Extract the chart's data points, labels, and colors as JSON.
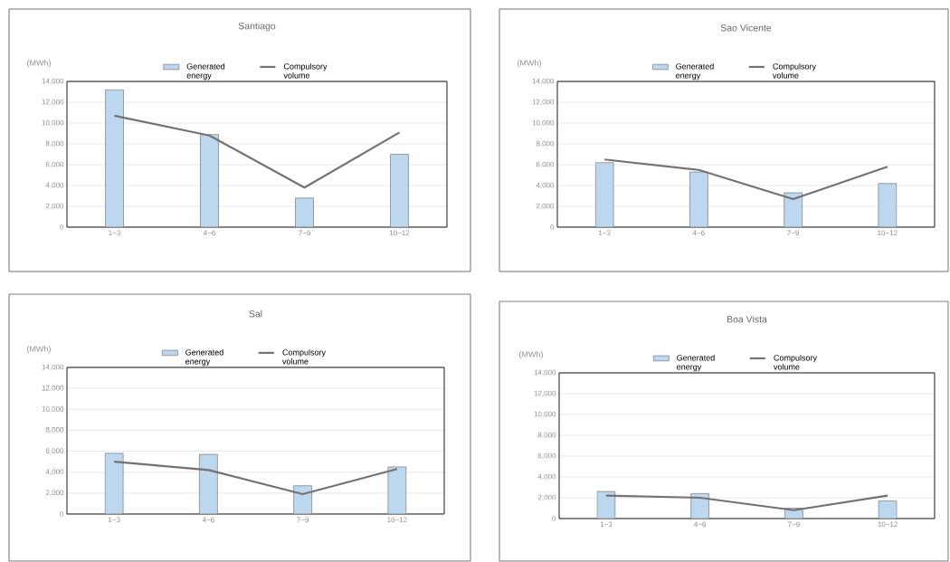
{
  "chart_data": [
    {
      "type": "bar",
      "title": "Santiago",
      "ylabel": "(MWh)",
      "categories": [
        "1~3",
        "4~6",
        "7~9",
        "10~12"
      ],
      "series": [
        {
          "name": "Generated energy",
          "type": "bar",
          "color": "#bdd7ee",
          "values": [
            13200,
            8900,
            2800,
            7000
          ]
        },
        {
          "name": "Compulsory volume",
          "type": "line",
          "color": "#767171",
          "values": [
            10700,
            8800,
            3800,
            9100
          ]
        }
      ],
      "ylim": [
        0,
        14000
      ],
      "yticks": [
        {
          "value": 0,
          "label": "0"
        },
        {
          "value": 2000,
          "label": "2,000"
        },
        {
          "value": 4000,
          "label": "4,000"
        },
        {
          "value": 6000,
          "label": "6,000"
        },
        {
          "value": 8000,
          "label": "8,000"
        },
        {
          "value": 10000,
          "label": "10,000"
        },
        {
          "value": 12000,
          "label": "12,000"
        },
        {
          "value": 14000,
          "label": "14,000"
        }
      ],
      "grid": "y",
      "legend": "top"
    },
    {
      "type": "bar",
      "title": "Sao Vicente",
      "ylabel": "(MWh)",
      "categories": [
        "1~3",
        "4~6",
        "7~9",
        "10~12"
      ],
      "series": [
        {
          "name": "Generated energy",
          "type": "bar",
          "color": "#bdd7ee",
          "values": [
            6200,
            5300,
            3300,
            4200
          ]
        },
        {
          "name": "Compulsory volume",
          "type": "line",
          "color": "#767171",
          "values": [
            6500,
            5500,
            2700,
            5800
          ]
        }
      ],
      "ylim": [
        0,
        14000
      ],
      "yticks": [
        {
          "value": 0,
          "label": "0"
        },
        {
          "value": 2000,
          "label": "2,000"
        },
        {
          "value": 4000,
          "label": "4,000"
        },
        {
          "value": 6000,
          "label": "6,000"
        },
        {
          "value": 8000,
          "label": "8,000"
        },
        {
          "value": 10000,
          "label": "10,000"
        },
        {
          "value": 12000,
          "label": "12,000"
        },
        {
          "value": 14000,
          "label": "14,000"
        }
      ],
      "grid": "y",
      "legend": "top"
    },
    {
      "type": "bar",
      "title": "Sal",
      "ylabel": "(MWh)",
      "categories": [
        "1~3",
        "4~6",
        "7~9",
        "10~12"
      ],
      "series": [
        {
          "name": "Generated energy",
          "type": "bar",
          "color": "#bdd7ee",
          "values": [
            5800,
            5700,
            2700,
            4500
          ]
        },
        {
          "name": "Compulsory volume",
          "type": "line",
          "color": "#767171",
          "values": [
            5000,
            4200,
            1900,
            4300
          ]
        }
      ],
      "ylim": [
        0,
        14000
      ],
      "yticks": [
        {
          "value": 0,
          "label": "0"
        },
        {
          "value": 2000,
          "label": "2,000"
        },
        {
          "value": 4000,
          "label": "4,000"
        },
        {
          "value": 6000,
          "label": "6,000"
        },
        {
          "value": 8000,
          "label": "8,000"
        },
        {
          "value": 10000,
          "label": "10,000"
        },
        {
          "value": 12000,
          "label": "12,000"
        },
        {
          "value": 14000,
          "label": "14,000"
        }
      ],
      "grid": "y",
      "legend": "top"
    },
    {
      "type": "bar",
      "title": "Boa Vista",
      "ylabel": "(MWh)",
      "categories": [
        "1~3",
        "4~6",
        "7~9",
        "10~12"
      ],
      "series": [
        {
          "name": "Generated energy",
          "type": "bar",
          "color": "#bdd7ee",
          "values": [
            2600,
            2400,
            1000,
            1700
          ]
        },
        {
          "name": "Compulsory volume",
          "type": "line",
          "color": "#767171",
          "values": [
            2200,
            2000,
            800,
            2200
          ]
        }
      ],
      "ylim": [
        0,
        14000
      ],
      "yticks": [
        {
          "value": 0,
          "label": "0"
        },
        {
          "value": 2000,
          "label": "2,000"
        },
        {
          "value": 4000,
          "label": "4,000"
        },
        {
          "value": 6000,
          "label": "6,000"
        },
        {
          "value": 8000,
          "label": "8,000"
        },
        {
          "value": 10000,
          "label": "10,000"
        },
        {
          "value": 12000,
          "label": "12,000"
        },
        {
          "value": 14000,
          "label": "14,000"
        }
      ],
      "grid": "y",
      "legend": "top"
    }
  ]
}
